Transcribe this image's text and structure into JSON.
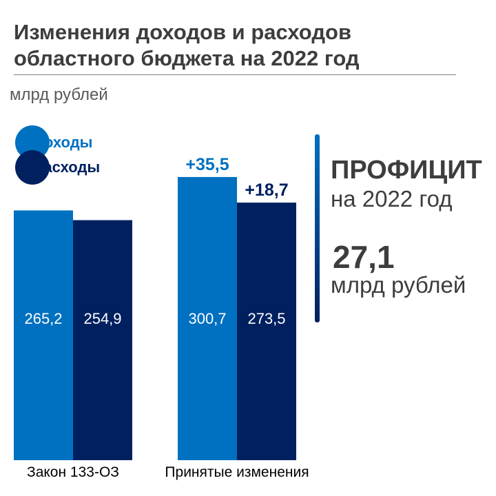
{
  "title_line1": "Изменения доходов и расходов",
  "title_line2": "областного бюджета на 2022 год",
  "unit_label": "млрд рублей",
  "colors": {
    "income": "#0070c0",
    "expense": "#002060",
    "accent_bar_top": "#0070c0",
    "accent_bar_bottom": "#002060"
  },
  "chart_data": {
    "type": "bar",
    "title": "Изменения доходов и расходов областного бюджета на 2022 год",
    "ylabel": "млрд рублей",
    "categories": [
      "Закон 133-ОЗ",
      "Принятые изменения"
    ],
    "series": [
      {
        "name": "доходы",
        "values": [
          265.2,
          300.7
        ],
        "labels": [
          "265,2",
          "300,7"
        ]
      },
      {
        "name": "расходы",
        "values": [
          254.9,
          273.5
        ],
        "labels": [
          "254,9",
          "273,5"
        ]
      }
    ],
    "changes": [
      {
        "series": "доходы",
        "value": 35.5,
        "label": "+35,5"
      },
      {
        "series": "расходы",
        "value": 18.7,
        "label": "+18,7"
      }
    ],
    "ylim": [
      0,
      310
    ],
    "grid": false,
    "legend": "top-left"
  },
  "surplus": {
    "title": "ПРОФИЦИТ",
    "year": "на 2022 год",
    "value": "27,1",
    "unit": "млрд рублей"
  }
}
